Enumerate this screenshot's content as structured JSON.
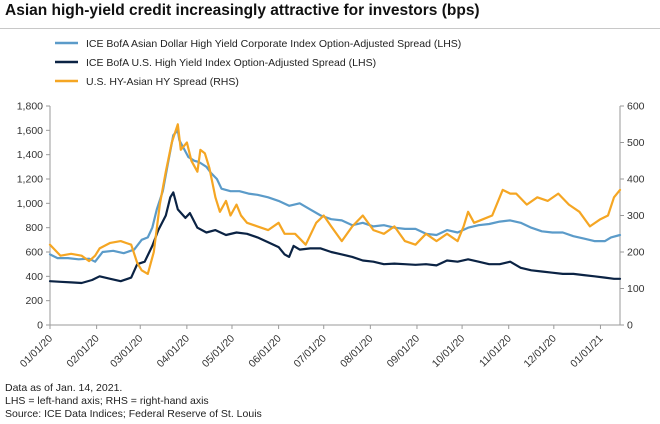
{
  "title": "Asian high-yield credit increasingly attractive for investors (bps)",
  "notes": [
    "Data as of Jan. 14, 2021.",
    "LHS = left-hand axis; RHS = right-hand axis",
    "Source: ICE Data Indices; Federal Reserve of St. Louis"
  ],
  "colors": {
    "asian": "#5b9bc9",
    "us": "#0b2344",
    "spread": "#f5a623"
  },
  "chart_data": {
    "type": "line",
    "grid": false,
    "legend_position": "top-left",
    "x_ticks": [
      "01/01/20",
      "02/01/20",
      "03/01/20",
      "04/01/20",
      "05/01/20",
      "06/01/20",
      "07/01/20",
      "08/01/20",
      "09/01/20",
      "10/01/20",
      "11/01/20",
      "12/01/20",
      "01/01/21"
    ],
    "x_range": [
      "2020-01-01",
      "2021-01-14"
    ],
    "y_left": {
      "min": 0,
      "max": 1800,
      "ticks": [
        "0",
        "200",
        "400",
        "600",
        "800",
        "1,000",
        "1,200",
        "1,400",
        "1,600",
        "1,800"
      ]
    },
    "y_right": {
      "min": 0,
      "max": 600,
      "ticks": [
        "0",
        "100",
        "200",
        "300",
        "400",
        "500",
        "600"
      ]
    },
    "series": [
      {
        "name": "ICE BofA Asian Dollar High Yield Corporate Index Option-Adjusted Spread (LHS)",
        "axis": "left",
        "color": "#5b9bc9",
        "points": [
          [
            "2020-01-01",
            580
          ],
          [
            "2020-01-06",
            550
          ],
          [
            "2020-01-13",
            550
          ],
          [
            "2020-01-20",
            540
          ],
          [
            "2020-01-27",
            545
          ],
          [
            "2020-01-31",
            520
          ],
          [
            "2020-02-05",
            600
          ],
          [
            "2020-02-12",
            610
          ],
          [
            "2020-02-19",
            590
          ],
          [
            "2020-02-26",
            620
          ],
          [
            "2020-03-02",
            700
          ],
          [
            "2020-03-06",
            720
          ],
          [
            "2020-03-09",
            800
          ],
          [
            "2020-03-12",
            950
          ],
          [
            "2020-03-16",
            1100
          ],
          [
            "2020-03-19",
            1300
          ],
          [
            "2020-03-23",
            1560
          ],
          [
            "2020-03-26",
            1600
          ],
          [
            "2020-03-27",
            1520
          ],
          [
            "2020-03-30",
            1450
          ],
          [
            "2020-04-02",
            1380
          ],
          [
            "2020-04-06",
            1350
          ],
          [
            "2020-04-09",
            1340
          ],
          [
            "2020-04-14",
            1300
          ],
          [
            "2020-04-17",
            1250
          ],
          [
            "2020-04-21",
            1200
          ],
          [
            "2020-04-24",
            1120
          ],
          [
            "2020-04-30",
            1100
          ],
          [
            "2020-05-06",
            1100
          ],
          [
            "2020-05-12",
            1080
          ],
          [
            "2020-05-18",
            1070
          ],
          [
            "2020-05-25",
            1050
          ],
          [
            "2020-06-01",
            1020
          ],
          [
            "2020-06-08",
            980
          ],
          [
            "2020-06-15",
            1000
          ],
          [
            "2020-06-22",
            950
          ],
          [
            "2020-06-29",
            900
          ],
          [
            "2020-07-06",
            870
          ],
          [
            "2020-07-13",
            860
          ],
          [
            "2020-07-20",
            820
          ],
          [
            "2020-07-27",
            840
          ],
          [
            "2020-08-03",
            810
          ],
          [
            "2020-08-10",
            820
          ],
          [
            "2020-08-17",
            800
          ],
          [
            "2020-08-24",
            790
          ],
          [
            "2020-08-31",
            790
          ],
          [
            "2020-09-07",
            750
          ],
          [
            "2020-09-14",
            740
          ],
          [
            "2020-09-21",
            780
          ],
          [
            "2020-09-28",
            760
          ],
          [
            "2020-10-05",
            800
          ],
          [
            "2020-10-12",
            820
          ],
          [
            "2020-10-19",
            830
          ],
          [
            "2020-10-26",
            850
          ],
          [
            "2020-11-02",
            860
          ],
          [
            "2020-11-09",
            840
          ],
          [
            "2020-11-16",
            800
          ],
          [
            "2020-11-23",
            770
          ],
          [
            "2020-11-30",
            760
          ],
          [
            "2020-12-07",
            760
          ],
          [
            "2020-12-14",
            730
          ],
          [
            "2020-12-21",
            710
          ],
          [
            "2020-12-28",
            690
          ],
          [
            "2021-01-04",
            690
          ],
          [
            "2021-01-08",
            720
          ],
          [
            "2021-01-14",
            740
          ]
        ]
      },
      {
        "name": "ICE BofA U.S. High Yield Index Option-Adjusted Spread (LHS)",
        "axis": "left",
        "color": "#0b2344",
        "points": [
          [
            "2020-01-01",
            360
          ],
          [
            "2020-01-08",
            355
          ],
          [
            "2020-01-15",
            350
          ],
          [
            "2020-01-22",
            345
          ],
          [
            "2020-01-29",
            370
          ],
          [
            "2020-02-03",
            400
          ],
          [
            "2020-02-10",
            380
          ],
          [
            "2020-02-17",
            360
          ],
          [
            "2020-02-24",
            390
          ],
          [
            "2020-02-28",
            500
          ],
          [
            "2020-03-04",
            520
          ],
          [
            "2020-03-09",
            650
          ],
          [
            "2020-03-13",
            780
          ],
          [
            "2020-03-18",
            900
          ],
          [
            "2020-03-21",
            1050
          ],
          [
            "2020-03-23",
            1090
          ],
          [
            "2020-03-26",
            950
          ],
          [
            "2020-03-31",
            880
          ],
          [
            "2020-04-03",
            920
          ],
          [
            "2020-04-08",
            800
          ],
          [
            "2020-04-14",
            760
          ],
          [
            "2020-04-20",
            780
          ],
          [
            "2020-04-27",
            740
          ],
          [
            "2020-05-04",
            760
          ],
          [
            "2020-05-11",
            750
          ],
          [
            "2020-05-18",
            720
          ],
          [
            "2020-05-25",
            680
          ],
          [
            "2020-06-01",
            640
          ],
          [
            "2020-06-05",
            580
          ],
          [
            "2020-06-08",
            560
          ],
          [
            "2020-06-11",
            650
          ],
          [
            "2020-06-15",
            620
          ],
          [
            "2020-06-22",
            630
          ],
          [
            "2020-06-29",
            630
          ],
          [
            "2020-07-06",
            600
          ],
          [
            "2020-07-13",
            580
          ],
          [
            "2020-07-20",
            560
          ],
          [
            "2020-07-27",
            530
          ],
          [
            "2020-08-03",
            520
          ],
          [
            "2020-08-10",
            500
          ],
          [
            "2020-08-17",
            505
          ],
          [
            "2020-08-24",
            500
          ],
          [
            "2020-08-31",
            495
          ],
          [
            "2020-09-07",
            500
          ],
          [
            "2020-09-14",
            490
          ],
          [
            "2020-09-21",
            530
          ],
          [
            "2020-09-28",
            520
          ],
          [
            "2020-10-05",
            540
          ],
          [
            "2020-10-12",
            520
          ],
          [
            "2020-10-19",
            500
          ],
          [
            "2020-10-26",
            500
          ],
          [
            "2020-11-02",
            520
          ],
          [
            "2020-11-09",
            470
          ],
          [
            "2020-11-16",
            450
          ],
          [
            "2020-11-23",
            440
          ],
          [
            "2020-11-30",
            430
          ],
          [
            "2020-12-07",
            420
          ],
          [
            "2020-12-14",
            420
          ],
          [
            "2020-12-21",
            410
          ],
          [
            "2020-12-28",
            400
          ],
          [
            "2021-01-04",
            390
          ],
          [
            "2021-01-10",
            380
          ],
          [
            "2021-01-14",
            380
          ]
        ]
      },
      {
        "name": "U.S. HY-Asian HY Spread (RHS)",
        "axis": "right",
        "color": "#f5a623",
        "points": [
          [
            "2020-01-01",
            220
          ],
          [
            "2020-01-08",
            190
          ],
          [
            "2020-01-15",
            195
          ],
          [
            "2020-01-22",
            190
          ],
          [
            "2020-01-27",
            175
          ],
          [
            "2020-01-31",
            190
          ],
          [
            "2020-02-03",
            210
          ],
          [
            "2020-02-10",
            225
          ],
          [
            "2020-02-17",
            230
          ],
          [
            "2020-02-24",
            220
          ],
          [
            "2020-02-28",
            170
          ],
          [
            "2020-03-02",
            150
          ],
          [
            "2020-03-06",
            140
          ],
          [
            "2020-03-10",
            200
          ],
          [
            "2020-03-14",
            330
          ],
          [
            "2020-03-18",
            420
          ],
          [
            "2020-03-22",
            500
          ],
          [
            "2020-03-26",
            550
          ],
          [
            "2020-03-28",
            480
          ],
          [
            "2020-04-01",
            500
          ],
          [
            "2020-04-04",
            450
          ],
          [
            "2020-04-08",
            420
          ],
          [
            "2020-04-10",
            480
          ],
          [
            "2020-04-13",
            470
          ],
          [
            "2020-04-16",
            430
          ],
          [
            "2020-04-20",
            350
          ],
          [
            "2020-04-23",
            310
          ],
          [
            "2020-04-27",
            340
          ],
          [
            "2020-04-30",
            300
          ],
          [
            "2020-05-04",
            330
          ],
          [
            "2020-05-07",
            300
          ],
          [
            "2020-05-11",
            280
          ],
          [
            "2020-05-18",
            270
          ],
          [
            "2020-05-25",
            260
          ],
          [
            "2020-06-01",
            280
          ],
          [
            "2020-06-05",
            250
          ],
          [
            "2020-06-12",
            250
          ],
          [
            "2020-06-19",
            220
          ],
          [
            "2020-06-26",
            280
          ],
          [
            "2020-07-01",
            300
          ],
          [
            "2020-07-06",
            270
          ],
          [
            "2020-07-13",
            230
          ],
          [
            "2020-07-20",
            270
          ],
          [
            "2020-07-27",
            300
          ],
          [
            "2020-08-03",
            260
          ],
          [
            "2020-08-10",
            250
          ],
          [
            "2020-08-17",
            270
          ],
          [
            "2020-08-24",
            230
          ],
          [
            "2020-08-31",
            220
          ],
          [
            "2020-09-07",
            250
          ],
          [
            "2020-09-14",
            230
          ],
          [
            "2020-09-21",
            250
          ],
          [
            "2020-09-28",
            230
          ],
          [
            "2020-10-02",
            270
          ],
          [
            "2020-10-05",
            310
          ],
          [
            "2020-10-09",
            280
          ],
          [
            "2020-10-15",
            290
          ],
          [
            "2020-10-21",
            300
          ],
          [
            "2020-10-28",
            370
          ],
          [
            "2020-11-02",
            360
          ],
          [
            "2020-11-06",
            360
          ],
          [
            "2020-11-13",
            330
          ],
          [
            "2020-11-20",
            350
          ],
          [
            "2020-11-27",
            340
          ],
          [
            "2020-12-04",
            360
          ],
          [
            "2020-12-11",
            330
          ],
          [
            "2020-12-18",
            310
          ],
          [
            "2020-12-25",
            270
          ],
          [
            "2021-01-01",
            290
          ],
          [
            "2021-01-06",
            300
          ],
          [
            "2021-01-10",
            350
          ],
          [
            "2021-01-14",
            370
          ]
        ]
      }
    ]
  }
}
